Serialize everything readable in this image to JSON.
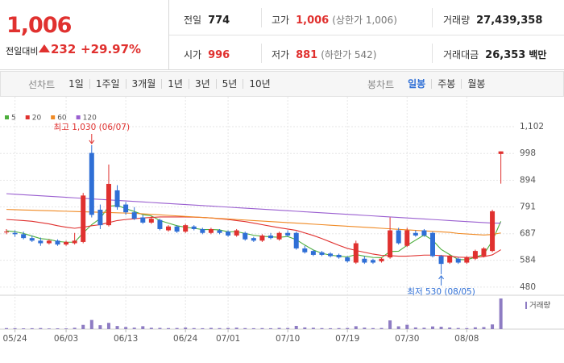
{
  "header": {
    "price": "1,006",
    "change_label": "전일대비",
    "change": "232",
    "change_rate": "+29.97%",
    "stats": [
      {
        "label": "전일",
        "value": "774",
        "color": "#222222"
      },
      {
        "label": "고가",
        "value": "1,006",
        "note": "(상한가 1,006)",
        "color": "#e0312f"
      },
      {
        "label": "거래량",
        "value": "27,439,358",
        "color": "#222222"
      },
      {
        "label": "시가",
        "value": "996",
        "color": "#e0312f"
      },
      {
        "label": "저가",
        "value": "881",
        "note": "(하한가 542)",
        "color": "#e0312f"
      },
      {
        "label": "거래대금",
        "value": "26,353",
        "unit": "백만",
        "color": "#222222"
      }
    ]
  },
  "toolbar": {
    "line_label": "선차트",
    "line_periods": [
      "1일",
      "1주일",
      "3개월",
      "1년",
      "3년",
      "5년",
      "10년"
    ],
    "candle_label": "봉차트",
    "candle_periods": [
      "일봉",
      "주봉",
      "월봉"
    ],
    "selected": "일봉"
  },
  "chart_data": {
    "type": "candlestick",
    "categories": [
      null,
      "05/24",
      null,
      null,
      null,
      null,
      null,
      "06/03",
      null,
      null,
      null,
      null,
      null,
      null,
      "06/13",
      null,
      null,
      null,
      null,
      null,
      null,
      "06/24",
      null,
      null,
      null,
      null,
      "07/01",
      null,
      null,
      null,
      null,
      null,
      null,
      "07/10",
      null,
      null,
      null,
      null,
      null,
      null,
      "07/19",
      null,
      null,
      null,
      null,
      null,
      null,
      "07/30",
      null,
      null,
      null,
      null,
      null,
      null,
      "08/08",
      null,
      null,
      null,
      null
    ],
    "open": [
      695,
      690,
      685,
      670,
      660,
      650,
      660,
      645,
      650,
      655,
      1000,
      780,
      720,
      855,
      800,
      770,
      750,
      730,
      740,
      700,
      715,
      695,
      715,
      705,
      690,
      700,
      695,
      680,
      690,
      670,
      660,
      680,
      665,
      690,
      690,
      630,
      620,
      615,
      610,
      605,
      595,
      575,
      590,
      585,
      580,
      595,
      700,
      640,
      690,
      700,
      690,
      600,
      575,
      590,
      575,
      590,
      600,
      620,
      996
    ],
    "high": [
      705,
      700,
      695,
      680,
      672,
      665,
      665,
      660,
      690,
      845,
      1030,
      800,
      955,
      875,
      810,
      790,
      760,
      755,
      745,
      720,
      720,
      725,
      720,
      710,
      710,
      705,
      700,
      705,
      695,
      675,
      685,
      690,
      695,
      700,
      695,
      640,
      625,
      620,
      615,
      610,
      600,
      660,
      600,
      590,
      595,
      750,
      710,
      710,
      700,
      705,
      695,
      605,
      605,
      595,
      600,
      625,
      635,
      780,
      1006
    ],
    "low": [
      685,
      675,
      665,
      655,
      640,
      645,
      640,
      640,
      645,
      650,
      750,
      705,
      715,
      780,
      760,
      740,
      725,
      725,
      700,
      695,
      690,
      690,
      700,
      685,
      685,
      685,
      675,
      675,
      660,
      655,
      655,
      665,
      660,
      675,
      625,
      610,
      600,
      600,
      595,
      590,
      575,
      570,
      570,
      570,
      575,
      590,
      645,
      635,
      675,
      675,
      595,
      530,
      570,
      570,
      570,
      585,
      595,
      615,
      881
    ],
    "close": [
      695,
      685,
      670,
      660,
      650,
      660,
      645,
      655,
      660,
      835,
      760,
      720,
      880,
      790,
      770,
      745,
      730,
      745,
      705,
      715,
      695,
      720,
      705,
      690,
      705,
      690,
      680,
      700,
      665,
      660,
      680,
      670,
      690,
      680,
      630,
      615,
      605,
      605,
      600,
      595,
      580,
      650,
      575,
      575,
      590,
      700,
      650,
      700,
      680,
      680,
      600,
      570,
      600,
      575,
      595,
      620,
      630,
      774,
      1006
    ],
    "up_color": "#e0312f",
    "down_color": "#2f6fd6",
    "moving_averages": [
      {
        "name": "5",
        "color": "#4cae3c",
        "values": [
          698,
          695,
          688,
          678,
          668,
          665,
          657,
          654,
          654,
          690,
          722,
          746,
          793,
          797,
          784,
          773,
          761,
          756,
          738,
          728,
          718,
          712,
          708,
          703,
          703,
          702,
          694,
          695,
          688,
          681,
          677,
          675,
          673,
          676,
          664,
          643,
          624,
          611,
          604,
          600,
          597,
          606,
          600,
          595,
          594,
          618,
          619,
          642,
          662,
          682,
          662,
          626,
          606,
          587,
          586,
          596,
          607,
          659,
          735
        ]
      },
      {
        "name": "20",
        "color": "#e0312f",
        "values": [
          742,
          740,
          738,
          735,
          730,
          725,
          718,
          712,
          708,
          712,
          718,
          722,
          730,
          738,
          742,
          745,
          748,
          750,
          752,
          752,
          752,
          752,
          751,
          750,
          748,
          745,
          742,
          738,
          734,
          728,
          722,
          716,
          710,
          705,
          700,
          690,
          680,
          668,
          655,
          642,
          630,
          622,
          615,
          608,
          603,
          602,
          600,
          600,
          602,
          604,
          604,
          602,
          600,
          596,
          595,
          596,
          598,
          605,
          625
        ]
      },
      {
        "name": "60",
        "color": "#f08a24",
        "values": [
          781,
          780,
          779,
          778,
          777,
          776,
          775,
          774,
          773,
          772,
          771,
          770,
          769,
          768,
          767,
          766,
          764,
          762,
          760,
          758,
          756,
          754,
          752,
          750,
          748,
          746,
          744,
          742,
          740,
          738,
          736,
          734,
          732,
          730,
          728,
          726,
          724,
          722,
          720,
          718,
          716,
          714,
          712,
          710,
          708,
          706,
          704,
          702,
          700,
          698,
          696,
          694,
          692,
          688,
          686,
          684,
          682,
          684,
          690
        ]
      },
      {
        "name": "120",
        "color": "#9a5fd0",
        "values": [
          842,
          840,
          838,
          836,
          834,
          832,
          830,
          828,
          826,
          824,
          822,
          820,
          818,
          816,
          814,
          812,
          810,
          808,
          806,
          804,
          802,
          800,
          798,
          796,
          794,
          792,
          790,
          788,
          786,
          784,
          782,
          780,
          778,
          776,
          774,
          772,
          770,
          768,
          766,
          764,
          762,
          760,
          758,
          756,
          754,
          752,
          750,
          748,
          746,
          744,
          742,
          740,
          738,
          736,
          734,
          732,
          730,
          728,
          728
        ]
      }
    ],
    "volume": {
      "name": "거래량",
      "color": "#8e7cc3",
      "values": [
        900000,
        850000,
        700000,
        800000,
        950000,
        600000,
        700000,
        650000,
        1200000,
        3800000,
        8200000,
        3500000,
        5600000,
        2800000,
        1900000,
        1300000,
        2600000,
        1200000,
        1100000,
        900000,
        1000000,
        1400000,
        900000,
        800000,
        1100000,
        900000,
        1000000,
        1300000,
        900000,
        800000,
        900000,
        800000,
        1100000,
        1000000,
        2900000,
        1500000,
        1200000,
        900000,
        800000,
        900000,
        1000000,
        2600000,
        1300000,
        900000,
        1000000,
        7800000,
        2500000,
        3900000,
        1500000,
        1200000,
        2400000,
        2100000,
        1400000,
        1000000,
        900000,
        1600000,
        1800000,
        4200000,
        27439358
      ]
    },
    "ylim": [
      461,
      1155
    ],
    "yticks": [
      480,
      584,
      687,
      791,
      894,
      998,
      {
        "value": 1102,
        "label": "1,102"
      }
    ],
    "grid": true,
    "annotations": [
      {
        "kind": "max",
        "text": "최고 1,030 (06/07)",
        "color": "#e0312f"
      },
      {
        "kind": "min",
        "text": "최저 530 (08/05)",
        "color": "#2f6fd6"
      }
    ]
  }
}
